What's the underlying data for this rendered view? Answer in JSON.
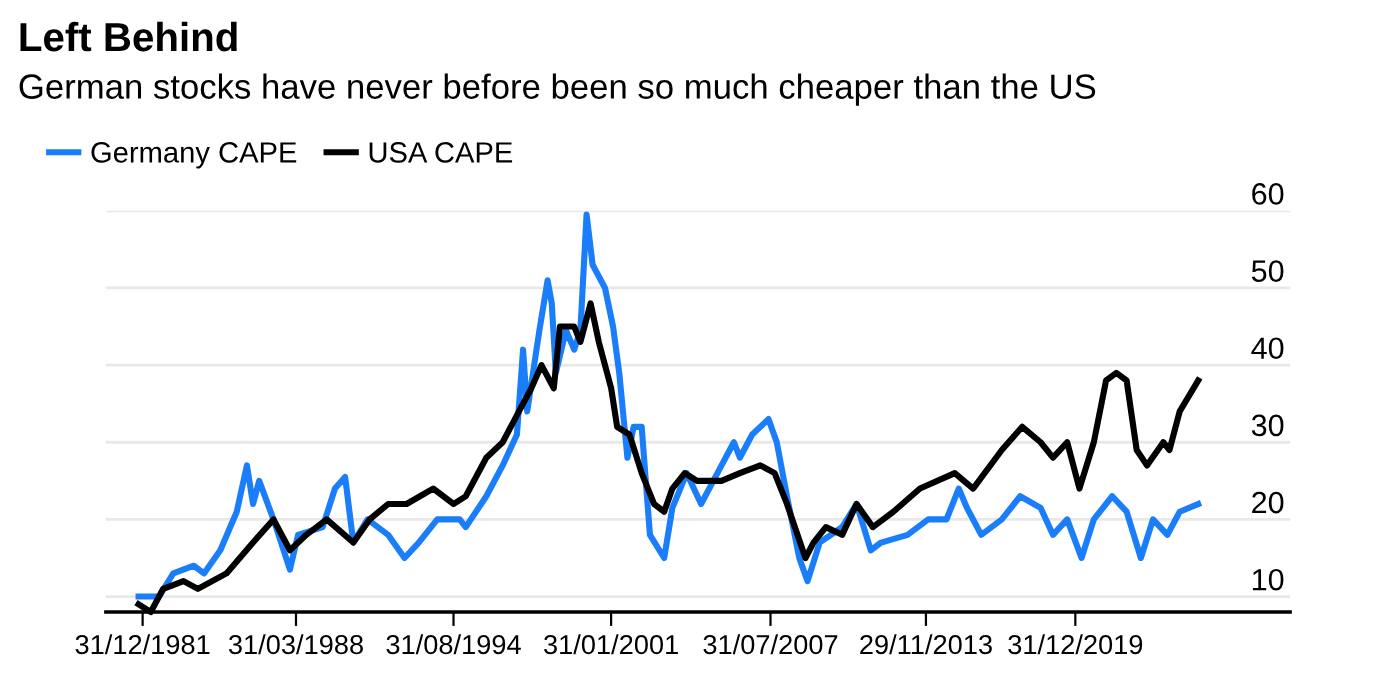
{
  "chart_data": {
    "type": "line",
    "title": "Left Behind",
    "subtitle": "German stocks have never before been so much cheaper than the US",
    "legend": "top left",
    "grid": "y",
    "line_style": "solid",
    "marker": "none",
    "ylim": [
      8,
      60
    ],
    "yticks": [
      10,
      20,
      30,
      40,
      50,
      60
    ],
    "xlim": [
      "1980-07",
      "2028-10"
    ],
    "xticks": [
      {
        "value": "1981-12-31",
        "label": "31/12/1981"
      },
      {
        "value": "1988-03-31",
        "label": "31/03/1988"
      },
      {
        "value": "1994-08-31",
        "label": "31/08/1994"
      },
      {
        "value": "2001-01-31",
        "label": "31/01/2001"
      },
      {
        "value": "2007-07-31",
        "label": "31/07/2007"
      },
      {
        "value": "2013-11-29",
        "label": "29/11/2013"
      },
      {
        "value": "2019-12-31",
        "label": "31/12/2019"
      }
    ],
    "series": [
      {
        "name": "Germany CAPE",
        "color": "#1a7dfa",
        "x": [
          "1981-11",
          "1982-09",
          "1983-04",
          "1984-02",
          "1984-07",
          "1985-03",
          "1985-11",
          "1986-04",
          "1986-07",
          "1986-10",
          "1987-05",
          "1988-01",
          "1988-05",
          "1989-05",
          "1989-11",
          "1990-04",
          "1990-08",
          "1991-03",
          "1992-01",
          "1992-09",
          "1993-04",
          "1994-01",
          "1994-12",
          "1995-03",
          "1996-01",
          "1996-09",
          "1997-04",
          "1997-07",
          "1997-09",
          "1998-03",
          "1998-07",
          "1998-09",
          "1998-11",
          "1999-04",
          "1999-08",
          "1999-11",
          "2000-02",
          "2000-05",
          "2000-11",
          "2001-03",
          "2001-06",
          "2001-10",
          "2002-01",
          "2002-05",
          "2002-09",
          "2003-04",
          "2003-08",
          "2004-03",
          "2004-10",
          "2005-08",
          "2006-02",
          "2006-05",
          "2006-11",
          "2007-07",
          "2007-11",
          "2008-04",
          "2008-10",
          "2009-02",
          "2009-08",
          "2010-07",
          "2011-02",
          "2011-09",
          "2012-02",
          "2013-03",
          "2014-01",
          "2014-10",
          "2015-04",
          "2015-08",
          "2016-03",
          "2017-01",
          "2017-10",
          "2018-08",
          "2019-02",
          "2019-09",
          "2020-04",
          "2020-10",
          "2021-07",
          "2022-02",
          "2022-09",
          "2023-03",
          "2023-10",
          "2024-04",
          "2025-01"
        ],
        "values": [
          10,
          10,
          13,
          14,
          13,
          16,
          21,
          27,
          22,
          25,
          20,
          13.5,
          18,
          19,
          24,
          25.5,
          17,
          20,
          18,
          15,
          17,
          20,
          20,
          19,
          23,
          27,
          31,
          42,
          34,
          44.5,
          51,
          48,
          39,
          44.5,
          42,
          44.5,
          59.5,
          53,
          50,
          45,
          39,
          28,
          32,
          32,
          18,
          15,
          21.5,
          26,
          22,
          27,
          30,
          28,
          31,
          33,
          30,
          23,
          15,
          12,
          17,
          19,
          22,
          16,
          17,
          18,
          20,
          20,
          24,
          21.5,
          18,
          20,
          23,
          21.5,
          18,
          20,
          15,
          20,
          23,
          21,
          15,
          20,
          18,
          21,
          22
        ]
      },
      {
        "name": "USA CAPE",
        "color": "#000000",
        "x": [
          "1981-11",
          "1982-05",
          "1982-11",
          "1983-09",
          "1984-04",
          "1985-06",
          "1986-07",
          "1987-05",
          "1988-01",
          "1988-09",
          "1989-07",
          "1990-08",
          "1991-04",
          "1992-01",
          "1992-10",
          "1993-11",
          "1994-09",
          "1995-03",
          "1996-01",
          "1996-09",
          "1997-05",
          "1997-11",
          "1998-04",
          "1998-10",
          "1999-01",
          "1999-08",
          "1999-11",
          "2000-04",
          "2000-08",
          "2001-02",
          "2001-05",
          "2001-11",
          "2002-05",
          "2002-11",
          "2003-04",
          "2003-08",
          "2004-02",
          "2004-08",
          "2005-08",
          "2006-05",
          "2007-03",
          "2007-10",
          "2008-04",
          "2009-01",
          "2009-05",
          "2009-11",
          "2010-07",
          "2011-02",
          "2011-10",
          "2012-08",
          "2013-09",
          "2015-02",
          "2015-11",
          "2017-01",
          "2017-11",
          "2018-08",
          "2019-02",
          "2019-09",
          "2020-03",
          "2020-10",
          "2021-04",
          "2021-09",
          "2022-02",
          "2022-07",
          "2022-12",
          "2023-08",
          "2023-11",
          "2024-04",
          "2025-01"
        ],
        "values": [
          9,
          8,
          11,
          12,
          11,
          13,
          17,
          20,
          16,
          18,
          20,
          17,
          20,
          22,
          22,
          24,
          22,
          23,
          28,
          30,
          34,
          37,
          40,
          37,
          45,
          45,
          43,
          48,
          43,
          37,
          32,
          31,
          26,
          22,
          21,
          24,
          26,
          25,
          25,
          26,
          27,
          26,
          22,
          15,
          17,
          19,
          18,
          22,
          19,
          21,
          24,
          26,
          24,
          29,
          32,
          30,
          28,
          30,
          24,
          30,
          38,
          39,
          38,
          29,
          27,
          30,
          29,
          34,
          38
        ]
      }
    ]
  }
}
